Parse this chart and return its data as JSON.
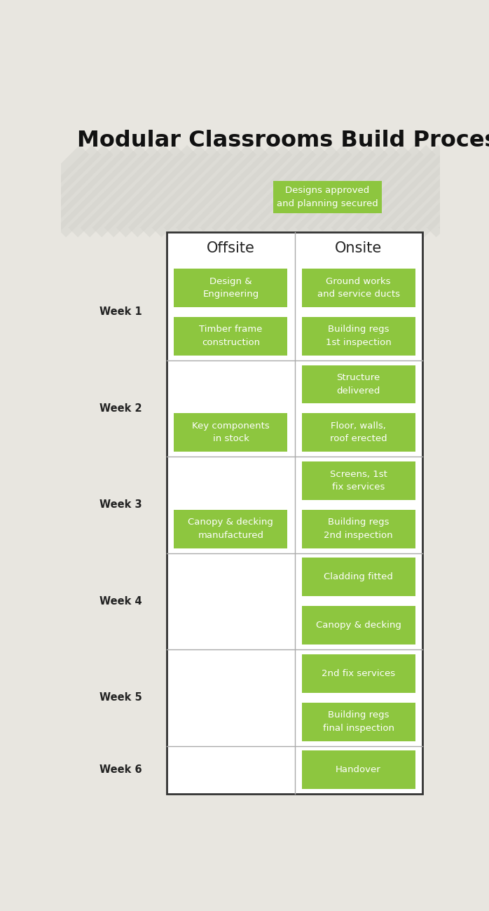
{
  "title": "Modular Classrooms Build Process",
  "bg_color": "#e8e6e0",
  "table_bg": "#ffffff",
  "box_color": "#8dc63f",
  "box_text_color": "#ffffff",
  "header_text_color": "#222222",
  "week_label_color": "#222222",
  "title_color": "#111111",
  "col_header_offsite": "Offsite",
  "col_header_onsite": "Onsite",
  "top_box_text": "Designs approved\nand planning secured",
  "offsite_boxes": [
    {
      "text": "Design &\nEngineering",
      "row": 0
    },
    {
      "text": "Timber frame\nconstruction",
      "row": 1
    },
    {
      "text": "Key components\nin stock",
      "row": 3
    },
    {
      "text": "Canopy & decking\nmanufactured",
      "row": 5
    }
  ],
  "onsite_boxes": [
    {
      "text": "Ground works\nand service ducts",
      "row": 0
    },
    {
      "text": "Building regs\n1st inspection",
      "row": 1
    },
    {
      "text": "Structure\ndelivered",
      "row": 2
    },
    {
      "text": "Floor, walls,\nroof erected",
      "row": 3
    },
    {
      "text": "Screens, 1st\nfix services",
      "row": 4
    },
    {
      "text": "Building regs\n2nd inspection",
      "row": 5
    },
    {
      "text": "Cladding fitted",
      "row": 6
    },
    {
      "text": "Canopy & decking",
      "row": 7
    },
    {
      "text": "2nd fix services",
      "row": 8
    },
    {
      "text": "Building regs\nfinal inspection",
      "row": 9
    },
    {
      "text": "Handover",
      "row": 10
    }
  ],
  "week_labels": [
    "Week 1",
    "Week 2",
    "Week 3",
    "Week 4",
    "Week 5",
    "Week 6"
  ],
  "week_row_starts": [
    0,
    2,
    4,
    6,
    8,
    10
  ],
  "week_row_ends": [
    2,
    4,
    6,
    8,
    10,
    11
  ],
  "week_dividers_after": [
    2,
    4,
    6,
    8,
    10
  ],
  "n_rows": 11,
  "stripe_color": "#d5d4ce",
  "stripe_color2": "#c8c7c2",
  "divider_color": "#aaaaaa",
  "table_border_color": "#333333"
}
